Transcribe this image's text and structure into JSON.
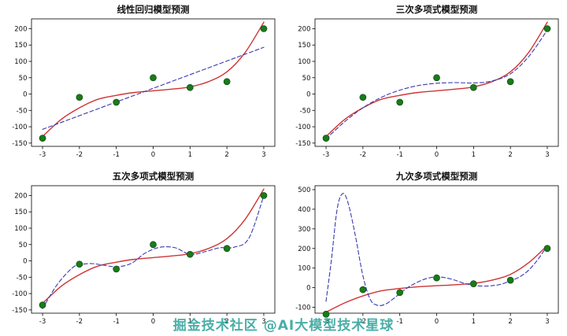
{
  "watermark": "掘金技术社区 @AI大模型技术星球",
  "colors": {
    "true_curve": "#cf3434",
    "prediction_curve": "#3a3ab0",
    "scatter": "#1a7a1a",
    "watermark": "#2aa198"
  },
  "chart_data": [
    {
      "type": "scatter",
      "title": "线性回归模型预测",
      "xlim": [
        -3.3,
        3.3
      ],
      "ylim": [
        -160,
        230
      ],
      "xticks": [
        -3,
        -2,
        -1,
        0,
        1,
        2,
        3
      ],
      "yticks": [
        -150,
        -100,
        -50,
        0,
        50,
        100,
        150,
        200
      ],
      "grid": false,
      "legend": "none",
      "scatter": {
        "name": "training-points",
        "color": "#1a7a1a",
        "x": [
          -3,
          -2,
          -1,
          0,
          1,
          2,
          3
        ],
        "y": [
          -135,
          -10,
          -25,
          50,
          20,
          38,
          200
        ]
      },
      "series": [
        {
          "name": "true-function-curve",
          "style": "solid",
          "color": "#cf3434",
          "x": [
            -3,
            -2.5,
            -2,
            -1.5,
            -1,
            -0.5,
            0,
            0.5,
            1,
            1.5,
            2,
            2.5,
            3
          ],
          "y": [
            -130,
            -78,
            -42,
            -16,
            -4,
            5,
            10,
            15,
            22,
            38,
            68,
            128,
            220
          ]
        },
        {
          "name": "model-prediction-curve",
          "style": "dashed",
          "color": "#3a3ab0",
          "x": [
            -3,
            3
          ],
          "y": [
            -108,
            143
          ]
        }
      ]
    },
    {
      "type": "scatter",
      "title": "三次多项式模型预测",
      "xlim": [
        -3.3,
        3.3
      ],
      "ylim": [
        -160,
        230
      ],
      "xticks": [
        -3,
        -2,
        -1,
        0,
        1,
        2,
        3
      ],
      "yticks": [
        -150,
        -100,
        -50,
        0,
        50,
        100,
        150,
        200
      ],
      "grid": false,
      "legend": "none",
      "scatter": {
        "name": "training-points",
        "color": "#1a7a1a",
        "x": [
          -3,
          -2,
          -1,
          0,
          1,
          2,
          3
        ],
        "y": [
          -135,
          -10,
          -25,
          50,
          20,
          38,
          200
        ]
      },
      "series": [
        {
          "name": "true-function-curve",
          "style": "solid",
          "color": "#cf3434",
          "x": [
            -3,
            -2.5,
            -2,
            -1.5,
            -1,
            -0.5,
            0,
            0.5,
            1,
            1.5,
            2,
            2.5,
            3
          ],
          "y": [
            -130,
            -78,
            -42,
            -16,
            -4,
            5,
            10,
            15,
            22,
            38,
            68,
            128,
            220
          ]
        },
        {
          "name": "model-prediction-curve",
          "style": "dashed",
          "color": "#3a3ab0",
          "x": [
            -3,
            -2.5,
            -2,
            -1.5,
            -1,
            -0.5,
            0,
            0.5,
            1,
            1.5,
            2,
            2.5,
            3
          ],
          "y": [
            -137,
            -85,
            -42,
            -10,
            12,
            26,
            33,
            35,
            34,
            40,
            62,
            115,
            196
          ]
        }
      ]
    },
    {
      "type": "scatter",
      "title": "五次多项式模型预测",
      "xlim": [
        -3.3,
        3.3
      ],
      "ylim": [
        -160,
        230
      ],
      "xticks": [
        -3,
        -2,
        -1,
        0,
        1,
        2,
        3
      ],
      "yticks": [
        -150,
        -100,
        -50,
        0,
        50,
        100,
        150,
        200
      ],
      "grid": false,
      "legend": "none",
      "scatter": {
        "name": "training-points",
        "color": "#1a7a1a",
        "x": [
          -3,
          -2,
          -1,
          0,
          1,
          2,
          3
        ],
        "y": [
          -135,
          -10,
          -25,
          50,
          20,
          38,
          200
        ]
      },
      "series": [
        {
          "name": "true-function-curve",
          "style": "solid",
          "color": "#cf3434",
          "x": [
            -3,
            -2.5,
            -2,
            -1.5,
            -1,
            -0.5,
            0,
            0.5,
            1,
            1.5,
            2,
            2.5,
            3
          ],
          "y": [
            -130,
            -78,
            -42,
            -16,
            -4,
            5,
            10,
            15,
            22,
            38,
            68,
            128,
            220
          ]
        },
        {
          "name": "model-prediction-curve",
          "style": "dashed",
          "color": "#3a3ab0",
          "x": [
            -3,
            -2.6,
            -2.2,
            -2,
            -1.7,
            -1.4,
            -1,
            -0.6,
            -0.2,
            0.2,
            0.6,
            1,
            1.4,
            1.8,
            2.2,
            2.6,
            3
          ],
          "y": [
            -146,
            -72,
            -22,
            -12,
            -8,
            -12,
            -18,
            -8,
            25,
            42,
            40,
            20,
            28,
            40,
            42,
            70,
            200
          ]
        }
      ]
    },
    {
      "type": "scatter",
      "title": "九次多项式模型预测",
      "xlim": [
        -3.3,
        3.3
      ],
      "ylim": [
        -130,
        520
      ],
      "xticks": [
        -3,
        -2,
        -1,
        0,
        1,
        2,
        3
      ],
      "yticks": [
        -100,
        0,
        100,
        200,
        300,
        400,
        500
      ],
      "grid": false,
      "legend": "none",
      "scatter": {
        "name": "training-points",
        "color": "#1a7a1a",
        "x": [
          -3,
          -2,
          -1,
          0,
          1,
          2,
          3
        ],
        "y": [
          -135,
          -10,
          -25,
          50,
          20,
          38,
          200
        ]
      },
      "series": [
        {
          "name": "true-function-curve",
          "style": "solid",
          "color": "#cf3434",
          "x": [
            -3,
            -2.5,
            -2,
            -1.5,
            -1,
            -0.5,
            0,
            0.5,
            1,
            1.5,
            2,
            2.5,
            3
          ],
          "y": [
            -125,
            -78,
            -42,
            -16,
            -4,
            5,
            10,
            15,
            22,
            38,
            68,
            128,
            215
          ]
        },
        {
          "name": "model-prediction-curve",
          "style": "dashed",
          "color": "#3a3ab0",
          "x": [
            -3,
            -2.85,
            -2.7,
            -2.55,
            -2.4,
            -2.2,
            -2,
            -1.8,
            -1.6,
            -1.4,
            -1.2,
            -1,
            -0.75,
            -0.5,
            -0.25,
            0,
            0.25,
            0.5,
            0.75,
            1,
            1.25,
            1.5,
            1.75,
            2,
            2.25,
            2.5,
            2.75,
            3
          ],
          "y": [
            -70,
            150,
            400,
            480,
            430,
            260,
            60,
            -60,
            -90,
            -85,
            -60,
            -30,
            5,
            30,
            48,
            55,
            50,
            38,
            22,
            12,
            8,
            10,
            18,
            35,
            55,
            90,
            145,
            215
          ]
        }
      ]
    }
  ]
}
